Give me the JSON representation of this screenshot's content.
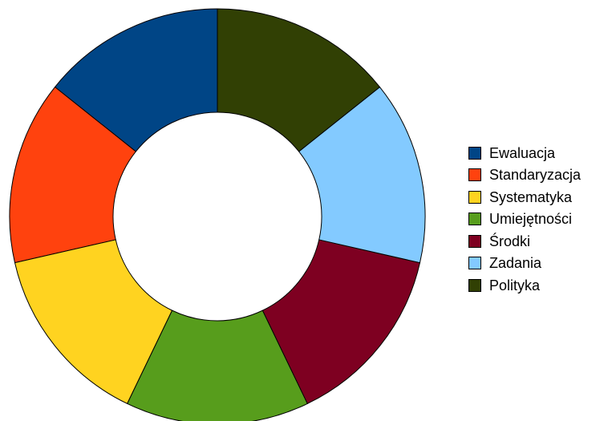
{
  "chart_data": {
    "type": "pie",
    "variant": "donut",
    "title": "",
    "legend_position": "right",
    "slices": [
      {
        "label": "Ewaluacja",
        "value": 1,
        "color": "#004586"
      },
      {
        "label": "Standaryzacja",
        "value": 1,
        "color": "#ff420e"
      },
      {
        "label": "Systematyka",
        "value": 1,
        "color": "#ffd320"
      },
      {
        "label": "Umiejętności",
        "value": 1,
        "color": "#579d1c"
      },
      {
        "label": "Środki",
        "value": 1,
        "color": "#7e0021"
      },
      {
        "label": "Zadania",
        "value": 1,
        "color": "#83caff"
      },
      {
        "label": "Polityka",
        "value": 1,
        "color": "#314004"
      }
    ]
  }
}
